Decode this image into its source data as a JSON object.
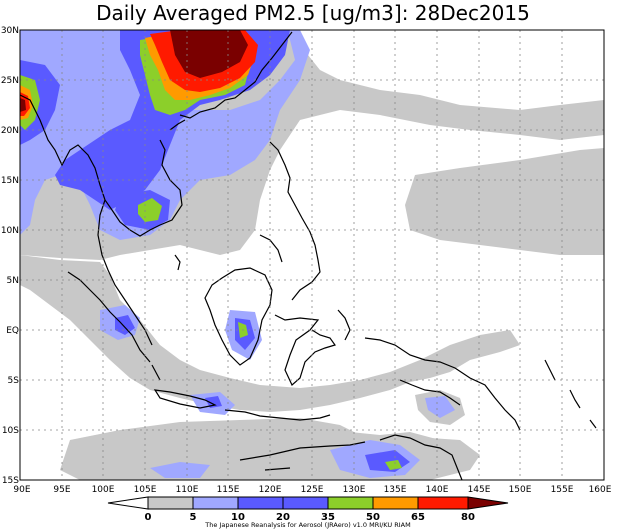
{
  "title": "Daily Averaged PM2.5 [ug/m3]: 28Dec2015",
  "credit": "The Japanese Reanalysis for Aerosol (JRAero) v1.0 MRI/KU RIAM",
  "map": {
    "lon_range": [
      90,
      160
    ],
    "lat_range": [
      -15,
      30
    ],
    "lon_ticks": [
      {
        "value": 90,
        "label": "90E"
      },
      {
        "value": 95,
        "label": "95E"
      },
      {
        "value": 100,
        "label": "100E"
      },
      {
        "value": 105,
        "label": "105E"
      },
      {
        "value": 110,
        "label": "110E"
      },
      {
        "value": 115,
        "label": "115E"
      },
      {
        "value": 120,
        "label": "120E"
      },
      {
        "value": 125,
        "label": "125E"
      },
      {
        "value": 130,
        "label": "130E"
      },
      {
        "value": 135,
        "label": "135E"
      },
      {
        "value": 140,
        "label": "140E"
      },
      {
        "value": 145,
        "label": "145E"
      },
      {
        "value": 150,
        "label": "150E"
      },
      {
        "value": 155,
        "label": "155E"
      },
      {
        "value": 160,
        "label": "160E"
      }
    ],
    "lat_ticks": [
      {
        "value": 30,
        "label": "30N"
      },
      {
        "value": 25,
        "label": "25N"
      },
      {
        "value": 20,
        "label": "20N"
      },
      {
        "value": 15,
        "label": "15N"
      },
      {
        "value": 10,
        "label": "10N"
      },
      {
        "value": 5,
        "label": "5N"
      },
      {
        "value": 0,
        "label": "EQ"
      },
      {
        "value": -5,
        "label": "5S"
      },
      {
        "value": -10,
        "label": "10S"
      },
      {
        "value": -15,
        "label": "15S"
      }
    ],
    "grid": true
  },
  "colorbar": {
    "levels": [
      0,
      5,
      10,
      20,
      35,
      50,
      65,
      80
    ],
    "labels": [
      "0",
      "5",
      "10",
      "20",
      "35",
      "50",
      "65",
      "80"
    ],
    "colors": [
      "#ffffff",
      "#c8c8c8",
      "#a0a8ff",
      "#5a5aff",
      "#8ccf2a",
      "#ff9a00",
      "#ff1a00",
      "#7a0000"
    ]
  }
}
